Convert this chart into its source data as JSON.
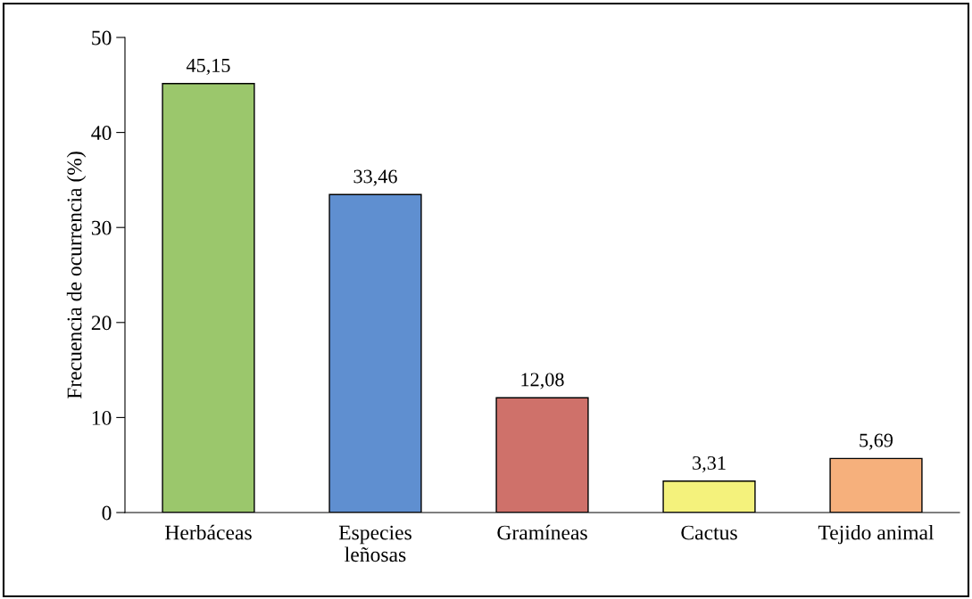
{
  "chart_data": {
    "type": "bar",
    "ylabel": "Frecuencia de ocurrencia (%)",
    "categories": [
      "Herbáceas",
      "Especies\nleñosas",
      "Gramíneas",
      "Cactus",
      "Tejido animal"
    ],
    "values": [
      45.15,
      33.46,
      12.08,
      3.31,
      5.69
    ],
    "value_labels": [
      "45,15",
      "33,46",
      "12,08",
      "3,31",
      "5,69"
    ],
    "colors": [
      "#9bc76c",
      "#5f8fd0",
      "#cf716a",
      "#f4f27c",
      "#f6b07c"
    ],
    "ylim": [
      0,
      50
    ],
    "yticks": [
      0,
      10,
      20,
      30,
      40,
      50
    ],
    "grid": false,
    "legend": false
  }
}
